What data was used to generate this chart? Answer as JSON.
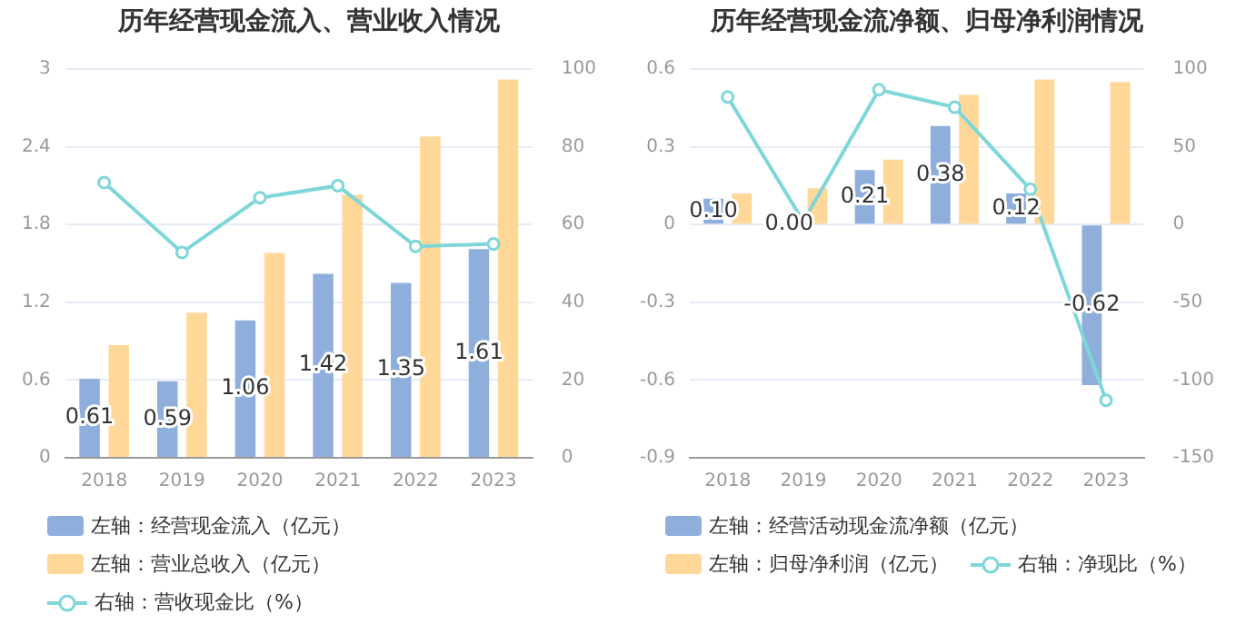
{
  "chart_data": [
    {
      "type": "bar",
      "title": "历年经营现金流入、营业收入情况",
      "categories": [
        "2018",
        "2019",
        "2020",
        "2021",
        "2022",
        "2023"
      ],
      "series": [
        {
          "name": "左轴：经营现金流入（亿元）",
          "color": "#8eaedb",
          "values": [
            0.61,
            0.59,
            1.06,
            1.42,
            1.35,
            1.61
          ],
          "value_labels": [
            "0.61",
            "0.59",
            "1.06",
            "1.42",
            "1.35",
            "1.61"
          ]
        },
        {
          "name": "左轴：营业总收入（亿元）",
          "color": "#ffd899",
          "values": [
            0.87,
            1.12,
            1.58,
            2.03,
            2.48,
            2.92
          ]
        },
        {
          "name": "右轴：营收现金比（%）",
          "type": "line",
          "axis": "y2",
          "color": "#7fd6d8",
          "marker": "circle",
          "values": [
            70.8,
            52.8,
            66.9,
            70,
            54.4,
            55
          ]
        }
      ],
      "ylim": [
        0,
        3
      ],
      "yticks": [
        0,
        0.6,
        1.2,
        1.8,
        2.4,
        3
      ],
      "y2lim": [
        0,
        100
      ],
      "y2ticks": [
        0,
        20,
        40,
        60,
        80,
        100
      ],
      "grid": "y",
      "legend": "bottom"
    },
    {
      "type": "bar",
      "title": "历年经营现金流净额、归母净利润情况",
      "categories": [
        "2018",
        "2019",
        "2020",
        "2021",
        "2022",
        "2023"
      ],
      "series": [
        {
          "name": "左轴：经营活动现金流净额（亿元）",
          "color": "#8eaedb",
          "values": [
            0.1,
            0,
            0.21,
            0.38,
            0.12,
            -0.62
          ],
          "value_labels": [
            "0.10",
            "0.00",
            "0.21",
            "0.38",
            "0.12",
            "-0.62"
          ]
        },
        {
          "name": "左轴：归母净利润（亿元）",
          "color": "#ffd899",
          "values": [
            0.12,
            0.14,
            0.25,
            0.5,
            0.56,
            0.55
          ]
        },
        {
          "name": "右轴：净现比（%）",
          "type": "line",
          "axis": "y2",
          "color": "#7fd6d8",
          "marker": "circle",
          "values": [
            82,
            2,
            86.7,
            75.4,
            22.7,
            -113
          ]
        }
      ],
      "ylim": [
        -0.9,
        0.6
      ],
      "yticks": [
        -0.9,
        -0.6,
        -0.3,
        0,
        0.3,
        0.6
      ],
      "y2lim": [
        -150,
        100
      ],
      "y2ticks": [
        -150,
        -100,
        -50,
        0,
        50,
        100
      ],
      "grid": "y",
      "legend": "bottom"
    }
  ]
}
